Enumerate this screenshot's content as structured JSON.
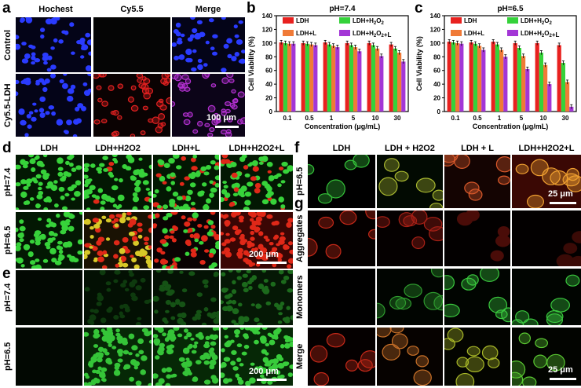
{
  "panel_letters": {
    "a": "a",
    "b": "b",
    "c": "c",
    "d": "d",
    "e": "e",
    "f": "f",
    "g": "g"
  },
  "panel_a": {
    "col_headers": [
      "Hochest",
      "Cy5.5",
      "Merge"
    ],
    "row_labels": [
      "Control",
      "Cy5.5-LDH"
    ],
    "scale_text": "100 μm"
  },
  "panel_d": {
    "col_headers": [
      "LDH",
      "LDH+H2O2",
      "LDH+L",
      "LDH+H2O2+L"
    ],
    "row_labels": [
      "pH=7.4",
      "pH=6.5"
    ],
    "scale_text": "200 μm"
  },
  "panel_e": {
    "row_labels": [
      "pH=7.4",
      "pH=6.5"
    ],
    "scale_text": "200 μm"
  },
  "panel_fg": {
    "col_headers": [
      "LDH",
      "LDH + H2O2",
      "LDH + L",
      "LDH+H2O2+L"
    ],
    "f_row_label": "pH=6.5",
    "g_row_labels": [
      "Aggregates",
      "Monomers",
      "Merge"
    ],
    "scale_text_f": "25 μm",
    "scale_text_g": "25 μm"
  },
  "colors": {
    "LDH": "#e8211f",
    "LDH+H2O2": "#35d23a",
    "LDH+L": "#f07a37",
    "LDH+H2O2+L": "#a336d6"
  },
  "chart_data": [
    {
      "type": "bar",
      "title": "pH=7.4",
      "xlabel": "Concentration (μg/mL)",
      "ylabel": "Cell Viability (%)",
      "ylim": [
        0,
        140
      ],
      "yticks": [
        0,
        20,
        40,
        60,
        80,
        100,
        120,
        140
      ],
      "categories": [
        "0.1",
        "0.5",
        "1",
        "5",
        "10",
        "30"
      ],
      "legend": [
        "LDH",
        "LDH+H2O2",
        "LDH+L",
        "LDH+H2O2+L"
      ],
      "series": [
        {
          "name": "LDH",
          "values": [
            101,
            100,
            101,
            100,
            100,
            98
          ]
        },
        {
          "name": "LDH+H2O2",
          "values": [
            100,
            99,
            98,
            97,
            97,
            92
          ]
        },
        {
          "name": "LDH+L",
          "values": [
            99,
            98,
            96,
            94,
            92,
            86
          ]
        },
        {
          "name": "LDH+H2O2+L",
          "values": [
            99,
            97,
            94,
            88,
            81,
            73
          ]
        }
      ]
    },
    {
      "type": "bar",
      "title": "pH=6.5",
      "xlabel": "Concentration (μg/mL)",
      "ylabel": "Cell Viability (%)",
      "ylim": [
        0,
        140
      ],
      "yticks": [
        0,
        20,
        40,
        60,
        80,
        100,
        120,
        140
      ],
      "categories": [
        "0.1",
        "0.5",
        "1",
        "5",
        "10",
        "30"
      ],
      "legend": [
        "LDH",
        "LDH+H2O2",
        "LDH+L",
        "LDH+H2O2+L"
      ],
      "series": [
        {
          "name": "LDH",
          "values": [
            102,
            101,
            102,
            100,
            100,
            97
          ]
        },
        {
          "name": "LDH+H2O2",
          "values": [
            101,
            99,
            98,
            93,
            86,
            71
          ]
        },
        {
          "name": "LDH+L",
          "values": [
            100,
            96,
            90,
            81,
            68,
            43
          ]
        },
        {
          "name": "LDH+H2O2+L",
          "values": [
            99,
            90,
            80,
            62,
            40,
            7
          ]
        }
      ]
    }
  ]
}
